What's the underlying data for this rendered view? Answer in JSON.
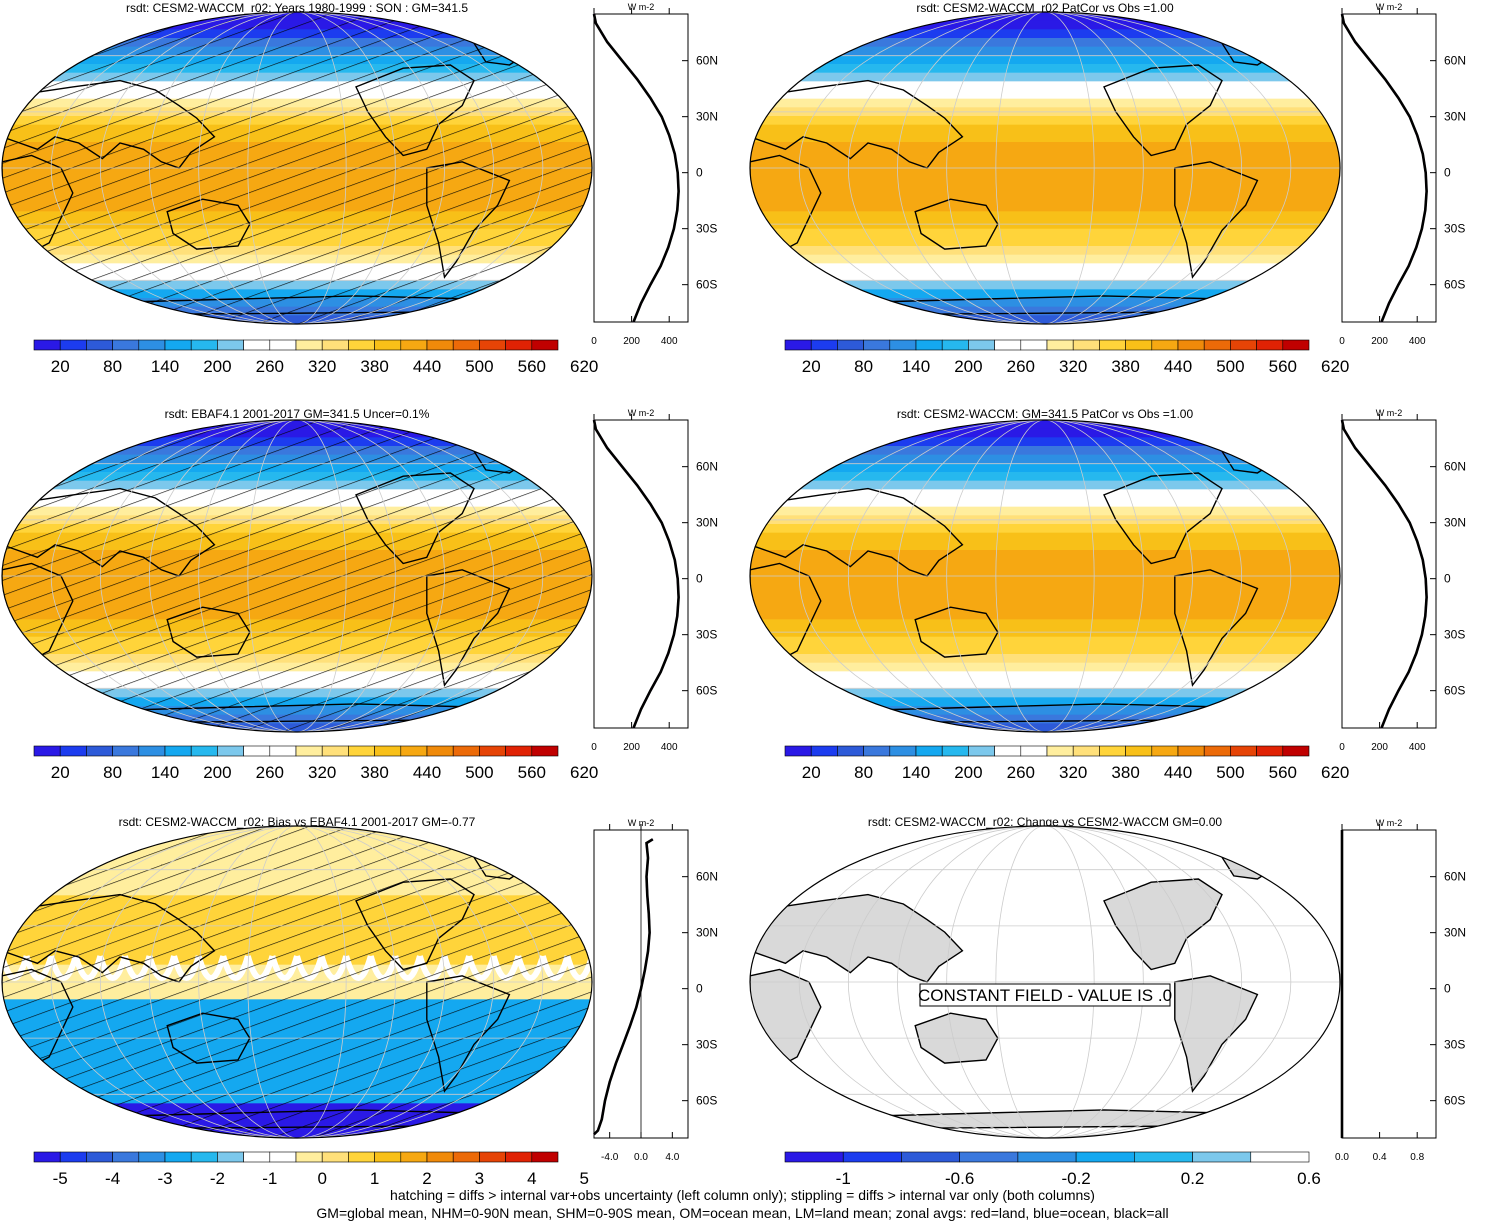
{
  "figure": {
    "footnote_line1": "hatching = diffs > internal var+obs uncertainty (left column only); stippling = diffs > internal var only (both columns)",
    "footnote_line2": "GM=global mean, NHM=0-90N mean, SHM=0-90S mean, OM=ocean mean, LM=land mean; zonal avgs: red=land, blue=ocean, black=all"
  },
  "colors": {
    "scale_main": [
      "#2a19e6",
      "#1c3cef",
      "#2d5ad8",
      "#3a78dd",
      "#2d8fe3",
      "#14a8f0",
      "#26b8ee",
      "#7cc8ec",
      "#ffffff",
      "#ffffff",
      "#ffee9e",
      "#ffe07a",
      "#ffd43a",
      "#f8c018",
      "#f6a812",
      "#f08a0a",
      "#ec6a08",
      "#e64406",
      "#e02204",
      "#c00000"
    ],
    "scale_bias": [
      "#2a19e6",
      "#1c3cef",
      "#2d5ad8",
      "#3a78dd",
      "#2d8fe3",
      "#14a8f0",
      "#26b8ee",
      "#7cc8ec",
      "#ffffff",
      "#ffffff",
      "#ffee9e",
      "#ffe07a",
      "#ffd43a",
      "#f8c018",
      "#f6a812",
      "#f08a0a",
      "#ec6a08",
      "#e64406",
      "#e02204",
      "#c00000"
    ],
    "scale_change": [
      "#2a19e6",
      "#1c3cef",
      "#2d5ad8",
      "#3a78dd",
      "#2d8fe3",
      "#14a8f0",
      "#26b8ee",
      "#7cc8ec",
      "#ffffff"
    ],
    "land_gray": "#d9d9d9",
    "zonal_all": "#000000",
    "zonal_land": "#d40000",
    "zonal_ocean": "#1f3dd8"
  },
  "chart_data": [
    {
      "type": "heatmap",
      "title": "rsdt: CESM2-WACCM_r02: Years 1980-1999 : SON : GM=341.5",
      "colorbar_labels": [
        "20",
        "80",
        "140",
        "200",
        "260",
        "320",
        "380",
        "440",
        "500",
        "560",
        "620"
      ],
      "field": "insolation",
      "hatching": true,
      "stippling": true,
      "zonal": {
        "unit": "W m-2",
        "xticks": [
          "0",
          "200",
          "400"
        ],
        "xlim": [
          0,
          500
        ],
        "lat_ticks": [
          "60N",
          "30N",
          "0",
          "30S",
          "60S"
        ],
        "lat": [
          -80,
          -70,
          -60,
          -50,
          -40,
          -30,
          -20,
          -10,
          0,
          10,
          20,
          30,
          40,
          50,
          60,
          70,
          80,
          85
        ],
        "value": [
          210,
          250,
          300,
          355,
          395,
          425,
          443,
          450,
          445,
          430,
          400,
          360,
          300,
          230,
          150,
          70,
          10,
          0
        ]
      }
    },
    {
      "type": "heatmap",
      "title": "rsdt: CESM2-WACCM_r02 PatCor vs Obs =1.00",
      "colorbar_labels": [
        "20",
        "80",
        "140",
        "200",
        "260",
        "320",
        "380",
        "440",
        "500",
        "560",
        "620"
      ],
      "field": "insolation",
      "hatching": false,
      "stippling": false,
      "zonal": {
        "unit": "W m-2",
        "xticks": [
          "0",
          "200",
          "400"
        ],
        "xlim": [
          0,
          500
        ],
        "lat_ticks": [
          "60N",
          "30N",
          "0",
          "30S",
          "60S"
        ],
        "lat": [
          -80,
          -70,
          -60,
          -50,
          -40,
          -30,
          -20,
          -10,
          0,
          10,
          20,
          30,
          40,
          50,
          60,
          70,
          80,
          85
        ],
        "value": [
          210,
          250,
          300,
          355,
          395,
          425,
          443,
          450,
          445,
          430,
          400,
          360,
          300,
          230,
          150,
          70,
          10,
          0
        ]
      }
    },
    {
      "type": "heatmap",
      "title": "rsdt: EBAF4.1 2001-2017 GM=341.5 Uncer=0.1%",
      "colorbar_labels": [
        "20",
        "80",
        "140",
        "200",
        "260",
        "320",
        "380",
        "440",
        "500",
        "560",
        "620"
      ],
      "field": "insolation",
      "hatching": true,
      "stippling": true,
      "zonal": {
        "unit": "W m-2",
        "xticks": [
          "0",
          "200",
          "400"
        ],
        "xlim": [
          0,
          500
        ],
        "lat_ticks": [
          "60N",
          "30N",
          "0",
          "30S",
          "60S"
        ],
        "lat": [
          -80,
          -70,
          -60,
          -50,
          -40,
          -30,
          -20,
          -10,
          0,
          10,
          20,
          30,
          40,
          50,
          60,
          70,
          80,
          85
        ],
        "value": [
          210,
          250,
          300,
          355,
          395,
          425,
          443,
          450,
          445,
          430,
          400,
          360,
          300,
          230,
          150,
          70,
          10,
          0
        ]
      }
    },
    {
      "type": "heatmap",
      "title": "rsdt: CESM2-WACCM: GM=341.5 PatCor vs Obs =1.00",
      "colorbar_labels": [
        "20",
        "80",
        "140",
        "200",
        "260",
        "320",
        "380",
        "440",
        "500",
        "560",
        "620"
      ],
      "field": "insolation",
      "hatching": false,
      "stippling": false,
      "zonal": {
        "unit": "W m-2",
        "xticks": [
          "0",
          "200",
          "400"
        ],
        "xlim": [
          0,
          500
        ],
        "lat_ticks": [
          "60N",
          "30N",
          "0",
          "30S",
          "60S"
        ],
        "lat": [
          -80,
          -70,
          -60,
          -50,
          -40,
          -30,
          -20,
          -10,
          0,
          10,
          20,
          30,
          40,
          50,
          60,
          70,
          80,
          85
        ],
        "value": [
          210,
          250,
          300,
          355,
          395,
          425,
          443,
          450,
          445,
          430,
          400,
          360,
          300,
          230,
          150,
          70,
          10,
          0
        ]
      }
    },
    {
      "type": "heatmap",
      "title": "rsdt: CESM2-WACCM_r02: Bias vs EBAF4.1 2001-2017  GM=-0.77",
      "colorbar_labels": [
        "-5",
        "-4",
        "-3",
        "-2",
        "-1",
        "0",
        "1",
        "2",
        "3",
        "4",
        "5"
      ],
      "field": "bias",
      "hatching": true,
      "stippling": true,
      "zonal": {
        "unit": "W m-2",
        "xticks": [
          "-4.0",
          "0.0",
          "4.0"
        ],
        "xlim": [
          -6,
          6
        ],
        "lat_ticks": [
          "60N",
          "30N",
          "0",
          "30S",
          "60S"
        ],
        "lat": [
          -78,
          -76,
          -70,
          -60,
          -50,
          -40,
          -30,
          -20,
          -10,
          0,
          10,
          20,
          30,
          40,
          50,
          60,
          70,
          78,
          80
        ],
        "value": [
          -6.0,
          -5.5,
          -5.0,
          -4.6,
          -4.0,
          -3.2,
          -2.3,
          -1.4,
          -0.6,
          0.0,
          0.5,
          0.9,
          1.1,
          1.0,
          0.8,
          0.7,
          0.9,
          0.7,
          1.5
        ]
      }
    },
    {
      "type": "heatmap",
      "title": "rsdt: CESM2-WACCM_r02: Change vs CESM2-WACCM GM=0.00",
      "colorbar_labels": [
        "-1",
        "-0.6",
        "-0.2",
        "0.2",
        "0.6"
      ],
      "field": "constant",
      "annotation": "CONSTANT FIELD - VALUE IS .0",
      "hatching": false,
      "stippling": false,
      "zonal": {
        "unit": "W m-2",
        "xticks": [
          "0.0",
          "0.4",
          "0.8"
        ],
        "xlim": [
          0,
          1
        ],
        "lat_ticks": [
          "60N",
          "30N",
          "0",
          "30S",
          "60S"
        ],
        "lat": [
          -80,
          85
        ],
        "value": [
          0.0,
          0.0
        ]
      }
    }
  ]
}
